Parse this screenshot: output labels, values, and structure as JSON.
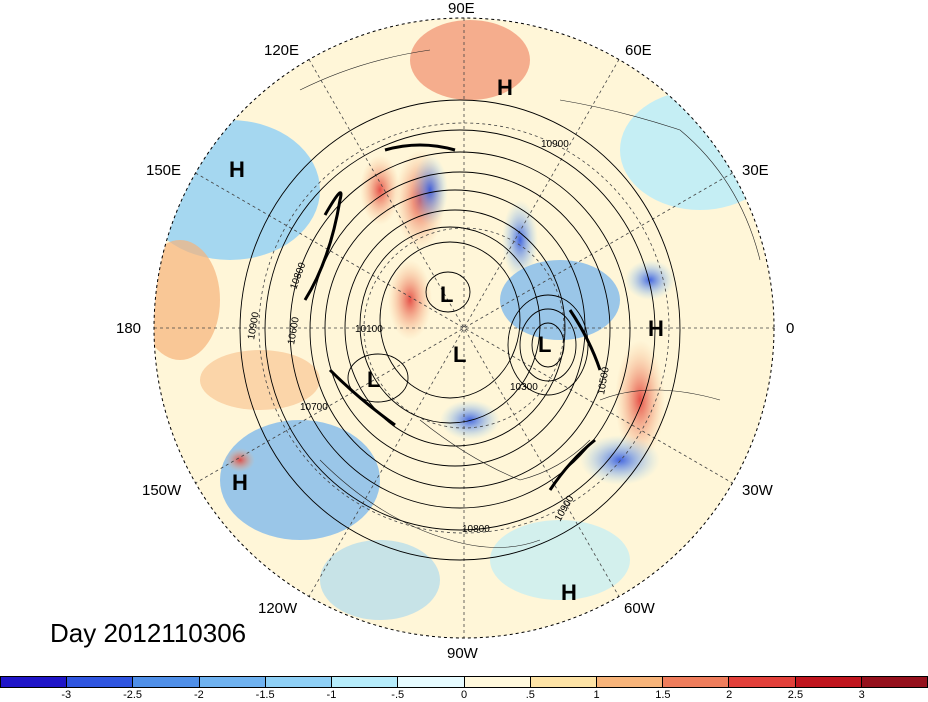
{
  "map": {
    "day_label": "Day 2012110306",
    "longitude_labels": [
      "90E",
      "60E",
      "30E",
      "0",
      "30W",
      "60W",
      "90W",
      "120W",
      "150W",
      "180",
      "150E",
      "120E"
    ],
    "pressure_centers": [
      {
        "type": "H",
        "near": "90E-60E"
      },
      {
        "type": "H",
        "near": "150E"
      },
      {
        "type": "H",
        "near": "0"
      },
      {
        "type": "H",
        "near": "150W"
      },
      {
        "type": "H",
        "near": "60W"
      },
      {
        "type": "L",
        "near": "pole-120E"
      },
      {
        "type": "L",
        "near": "pole-30E"
      },
      {
        "type": "L",
        "near": "pole-150W"
      },
      {
        "type": "L",
        "near": "pole"
      }
    ],
    "contour_labels": [
      "10900",
      "10800",
      "10600",
      "10100",
      "10700",
      "10300",
      "10500",
      "10900",
      "10800",
      "10900"
    ],
    "colors": {
      "strong_negative": "#1e1ec8",
      "negative": "#5aa0f0",
      "weak_negative": "#c8f0ff",
      "neutral": "#fff6d8",
      "weak_positive": "#f8c890",
      "positive": "#ee4a3a",
      "strong_positive": "#a3101a"
    }
  },
  "colorbar": {
    "labels": [
      "-3",
      "-2.5",
      "-2",
      "-1.5",
      "-1",
      "-.5",
      "0",
      ".5",
      "1",
      "1.5",
      "2",
      "2.5",
      "3"
    ],
    "segment_colors": [
      "#1f15c8",
      "#2f55e0",
      "#4f8fe8",
      "#6fb2f0",
      "#8fd0f6",
      "#b6ecfb",
      "#e6fbff",
      "#fff8dc",
      "#fde3a6",
      "#f7b47a",
      "#ef7d5c",
      "#e2403a",
      "#c0151e",
      "#95101c"
    ]
  }
}
